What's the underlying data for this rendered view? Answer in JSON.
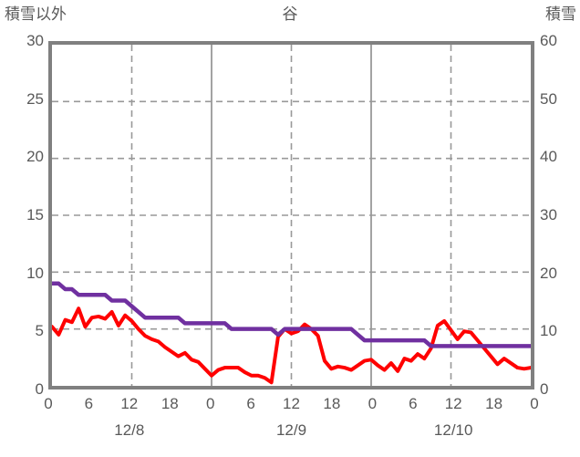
{
  "header": {
    "left_axis_title": "積雪以外",
    "title": "谷",
    "right_axis_title": "積雪"
  },
  "colors": {
    "red_series": "#ff0000",
    "snow_series": "#7030a0",
    "grid": "#999999",
    "border": "#808080",
    "text": "#595959",
    "background": "#ffffff"
  },
  "chart_data": {
    "type": "line",
    "title": "谷",
    "x_unit": "hours over 3 days",
    "x_range_hours": [
      0,
      72
    ],
    "x_tick_hours": [
      0,
      6,
      12,
      18,
      24,
      30,
      36,
      42,
      48,
      54,
      60,
      66,
      72
    ],
    "x_tick_labels": [
      "0",
      "6",
      "12",
      "18",
      "0",
      "6",
      "12",
      "18",
      "0",
      "6",
      "12",
      "18",
      "0"
    ],
    "date_labels": [
      {
        "label": "12/8",
        "hour": 12
      },
      {
        "label": "12/9",
        "hour": 36
      },
      {
        "label": "12/10",
        "hour": 60
      }
    ],
    "left_axis": {
      "title": "積雪以外",
      "min": 0,
      "max": 30,
      "ticks": [
        30,
        25,
        20,
        15,
        10,
        5,
        0
      ]
    },
    "right_axis": {
      "title": "積雪",
      "min": 0,
      "max": 60,
      "ticks": [
        60,
        50,
        40,
        30,
        20,
        10,
        0
      ]
    },
    "gridlines": {
      "horizontal_left_values": [
        25,
        20,
        15,
        10,
        5
      ],
      "vertical_dashed_hours": [
        12,
        36,
        60
      ],
      "vertical_solid_hours": [
        24,
        48
      ],
      "style": "dashed"
    },
    "legend": "none",
    "series": [
      {
        "name": "積雪以外",
        "axis": "left",
        "color": "#ff0000",
        "line_width": 4,
        "values": [
          5.2,
          4.5,
          5.8,
          5.6,
          6.8,
          5.2,
          6.0,
          6.1,
          5.9,
          6.5,
          5.3,
          6.2,
          5.7,
          5.0,
          4.4,
          4.1,
          3.9,
          3.4,
          3.0,
          2.6,
          2.9,
          2.3,
          2.1,
          1.5,
          0.9,
          1.4,
          1.6,
          1.6,
          1.6,
          1.2,
          0.9,
          0.9,
          0.7,
          0.3,
          4.3,
          5.0,
          4.6,
          4.8,
          5.4,
          5.0,
          4.4,
          2.2,
          1.5,
          1.7,
          1.6,
          1.4,
          1.8,
          2.2,
          2.3,
          1.8,
          1.4,
          2.0,
          1.3,
          2.4,
          2.2,
          2.8,
          2.4,
          3.3,
          5.3,
          5.7,
          4.9,
          4.1,
          4.8,
          4.7,
          4.0,
          3.3,
          2.6,
          1.9,
          2.4,
          2.0,
          1.6,
          1.5,
          1.6
        ]
      },
      {
        "name": "積雪",
        "axis": "right",
        "color": "#7030a0",
        "line_width": 4.5,
        "values": [
          18,
          18,
          17,
          17,
          16,
          16,
          16,
          16,
          16,
          15,
          15,
          15,
          14,
          13,
          12,
          12,
          12,
          12,
          12,
          12,
          11,
          11,
          11,
          11,
          11,
          11,
          11,
          10,
          10,
          10,
          10,
          10,
          10,
          10,
          9,
          10,
          10,
          10,
          10,
          10,
          10,
          10,
          10,
          10,
          10,
          10,
          9,
          8,
          8,
          8,
          8,
          8,
          8,
          8,
          8,
          8,
          8,
          7,
          7,
          7,
          7,
          7,
          7,
          7,
          7,
          7,
          7,
          7,
          7,
          7,
          7,
          7,
          7
        ]
      }
    ]
  }
}
